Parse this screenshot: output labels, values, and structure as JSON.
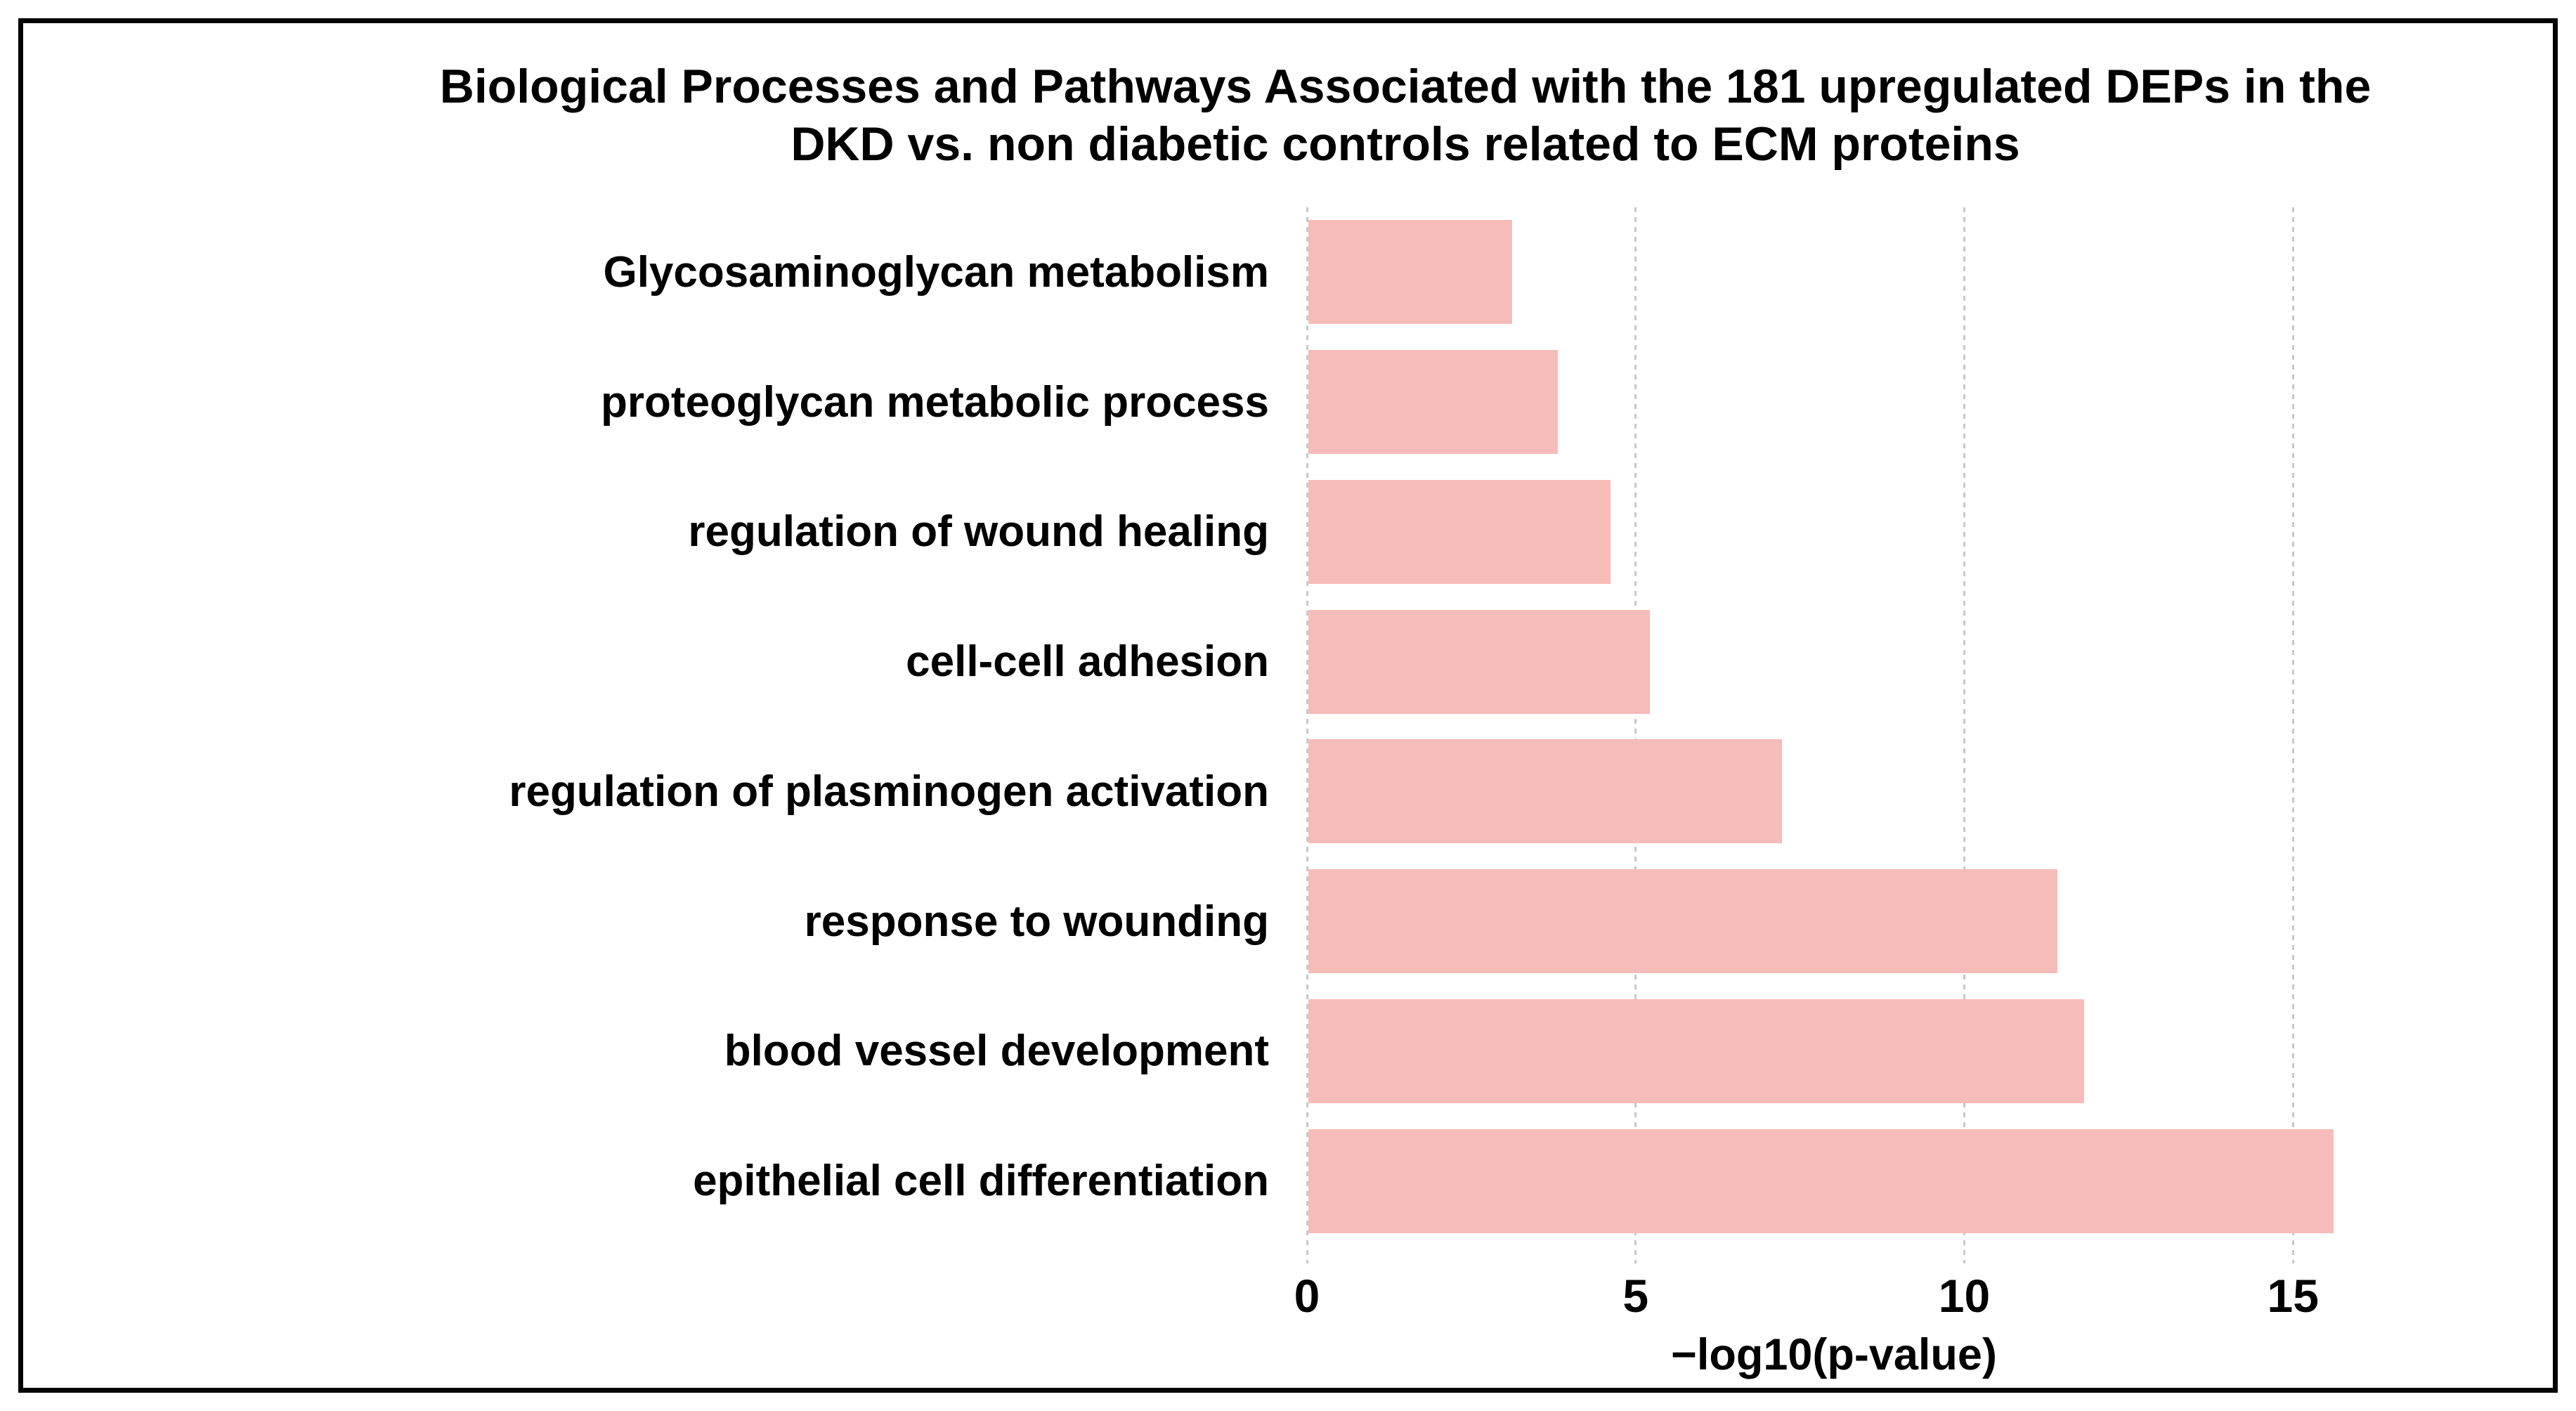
{
  "figure": {
    "background": "#ffffff",
    "border_color": "#000000"
  },
  "chart_data": {
    "type": "bar",
    "orientation": "horizontal",
    "title": "Biological Processes and Pathways Associated with the 181 upregulated DEPs in the DKD vs. non diabetic controls related to ECM proteins",
    "title_lines": [
      "Biological Processes and Pathways Associated with the 181 upregulated DEPs in the",
      "DKD vs. non diabetic controls related to ECM proteins"
    ],
    "categories": [
      "Glycosaminoglycan metabolism",
      "proteoglycan metabolic process",
      "regulation of wound healing",
      "cell-cell adhesion",
      "regulation of plasminogen activation",
      "response to wounding",
      "blood vessel development",
      "epithelial cell differentiation"
    ],
    "values": [
      3.1,
      3.8,
      4.6,
      5.2,
      7.2,
      11.4,
      11.8,
      15.6
    ],
    "xlabel": "−log10(p-value)",
    "ylabel": "",
    "xticks": [
      0,
      5,
      10,
      15
    ],
    "xlim": [
      0,
      18.6
    ],
    "grid": "vertical-dotted",
    "legend_position": "none",
    "bar_color": "#F6BCB9",
    "gridline_color": "#C8C8C8",
    "text_color": "#000000"
  }
}
